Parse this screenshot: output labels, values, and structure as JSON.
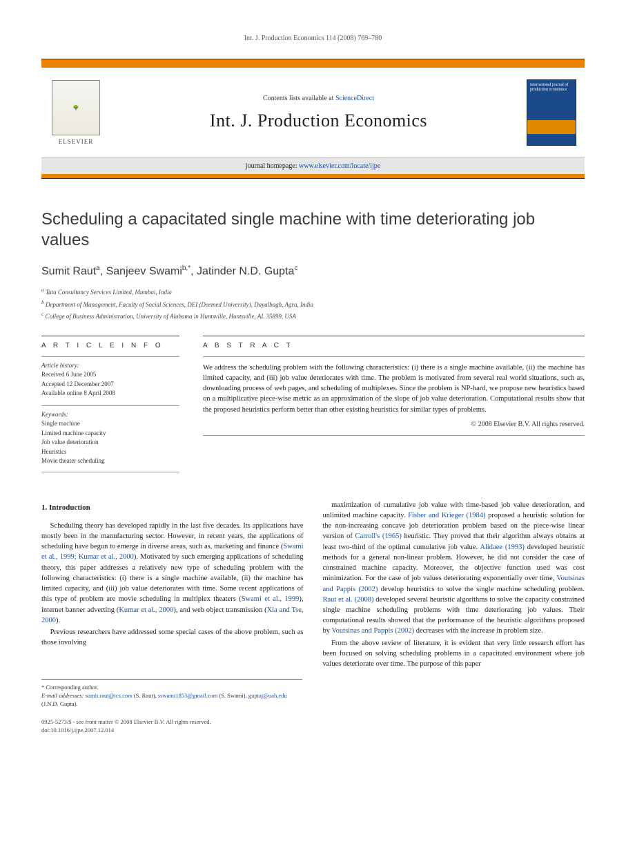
{
  "running_head": "Int. J. Production Economics 114 (2008) 769–780",
  "masthead": {
    "contents_prefix": "Contents lists available at ",
    "contents_link": "ScienceDirect",
    "journal_name": "Int. J. Production Economics",
    "homepage_prefix": "journal homepage: ",
    "homepage_url": "www.elsevier.com/locate/ijpe",
    "publisher": "ELSEVIER",
    "cover_title": "international journal of production economics",
    "colors": {
      "accent_orange": "#e98300",
      "cover_blue": "#1b4a8a",
      "link_blue": "#1a4fa3",
      "grey_band": "#e6e6e6"
    }
  },
  "article": {
    "title": "Scheduling a capacitated single machine with time deteriorating job values",
    "authors_html": "Sumit Raut <sup>a</sup>, Sanjeev Swami <sup>b,*</sup>, Jatinder N.D. Gupta <sup>c</sup>",
    "authors": [
      {
        "name": "Sumit Raut",
        "marker": "a"
      },
      {
        "name": "Sanjeev Swami",
        "marker": "b,*"
      },
      {
        "name": "Jatinder N.D. Gupta",
        "marker": "c"
      }
    ],
    "affiliations": [
      {
        "marker": "a",
        "text": "Tata Consultancy Services Limited, Mumbai, India"
      },
      {
        "marker": "b",
        "text": "Department of Management, Faculty of Social Sciences, DEI (Deemed University), Dayalbagh, Agra, India"
      },
      {
        "marker": "c",
        "text": "College of Business Administration, University of Alabama in Huntsville, Huntsville, AL 35899, USA"
      }
    ]
  },
  "article_info": {
    "label": "A R T I C L E   I N F O",
    "history_label": "Article history:",
    "history": [
      "Received 6 June 2005",
      "Accepted 12 December 2007",
      "Available online 8 April 2008"
    ],
    "keywords_label": "Keywords:",
    "keywords": [
      "Single machine",
      "Limited machine capacity",
      "Job value deterioration",
      "Heuristics",
      "Movie theater scheduling"
    ]
  },
  "abstract": {
    "label": "A B S T R A C T",
    "text": "We address the scheduling problem with the following characteristics: (i) there is a single machine available, (ii) the machine has limited capacity, and (iii) job value deteriorates with time. The problem is motivated from several real world situations, such as, downloading process of web pages, and scheduling of multiplexes. Since the problem is NP-hard, we propose new heuristics based on a multiplicative piece-wise metric as an approximation of the slope of job value deterioration. Computational results show that the proposed heuristics perform better than other existing heuristics for similar types of problems.",
    "copyright": "© 2008 Elsevier B.V. All rights reserved."
  },
  "body": {
    "section_heading": "1.  Introduction",
    "p1_a": "Scheduling theory has developed rapidly in the last five decades. Its applications have mostly been in the manufacturing sector. However, in recent years, the applications of scheduling have begun to emerge in diverse areas, such as, marketing and finance (",
    "p1_link1": "Swami et al., 1999; Kumar et al., 2000",
    "p1_b": "). Motivated by such emerging applications of scheduling theory, this paper addresses a relatively new type of scheduling problem with the following characteristics: (i) there is a single machine available, (ii) the machine has limited capacity, and (iii) job value deteriorates with time. Some recent applications of this type of problem are movie scheduling in multiplex theaters (",
    "p1_link2": "Swami et al., 1999",
    "p1_c": "), internet banner adverting (",
    "p1_link3": "Kumar et al., 2000",
    "p1_d": "), and web object transmission (",
    "p1_link4": "Xia and Tse, 2000",
    "p1_e": ").",
    "p2": "Previous researchers have addressed some special cases of the above problem, such as those involving",
    "p3_a": "maximization of cumulative job value with time-based job value deterioration, and unlimited machine capacity. ",
    "p3_link1": "Fisher and Krieger (1984)",
    "p3_b": " proposed a heuristic solution for the non-increasing concave job deterioration problem based on the piece-wise linear version of ",
    "p3_link2": "Carroll's (1965)",
    "p3_c": " heuristic. They proved that their algorithm always obtains at least two-third of the optimal cumulative job value. ",
    "p3_link3": "Alidaee (1993)",
    "p3_d": " developed heuristic methods for a general non-linear problem. However, he did not consider the case of constrained machine capacity. Moreover, the objective function used was cost minimization. For the case of job values deteriorating exponentially over time, ",
    "p3_link4": "Voutsinas and Pappis (2002)",
    "p3_e": " develop heuristics to solve the single machine scheduling problem. ",
    "p3_link5": "Raut et al. (2008)",
    "p3_f": " developed several heuristic algorithms to solve the capacity constrained single machine scheduling problems with time deteriorating job values. Their computational results showed that the performance of the heuristic algorithms proposed by ",
    "p3_link6": "Voutsinas and Pappis (2002)",
    "p3_g": " decreases with the increase in problem size.",
    "p4": "From the above review of literature, it is evident that very little research effort has been focused on solving scheduling problems in a capacitated environment where job values deteriorate over time. The purpose of this paper"
  },
  "footnotes": {
    "corr": "* Corresponding author.",
    "email_label": "E-mail addresses:",
    "emails": [
      {
        "addr": "sumit.raut@tcs.com",
        "who": "(S. Raut)"
      },
      {
        "addr": "sswami1853@gmail.com",
        "who": "(S. Swami)"
      },
      {
        "addr": "guptaj@uah.edu",
        "who": "(J.N.D. Gupta)"
      }
    ]
  },
  "footer": {
    "issn_line": "0925-5273/$ - see front matter © 2008 Elsevier B.V. All rights reserved.",
    "doi_line": "doi:10.1016/j.ijpe.2007.12.014"
  }
}
